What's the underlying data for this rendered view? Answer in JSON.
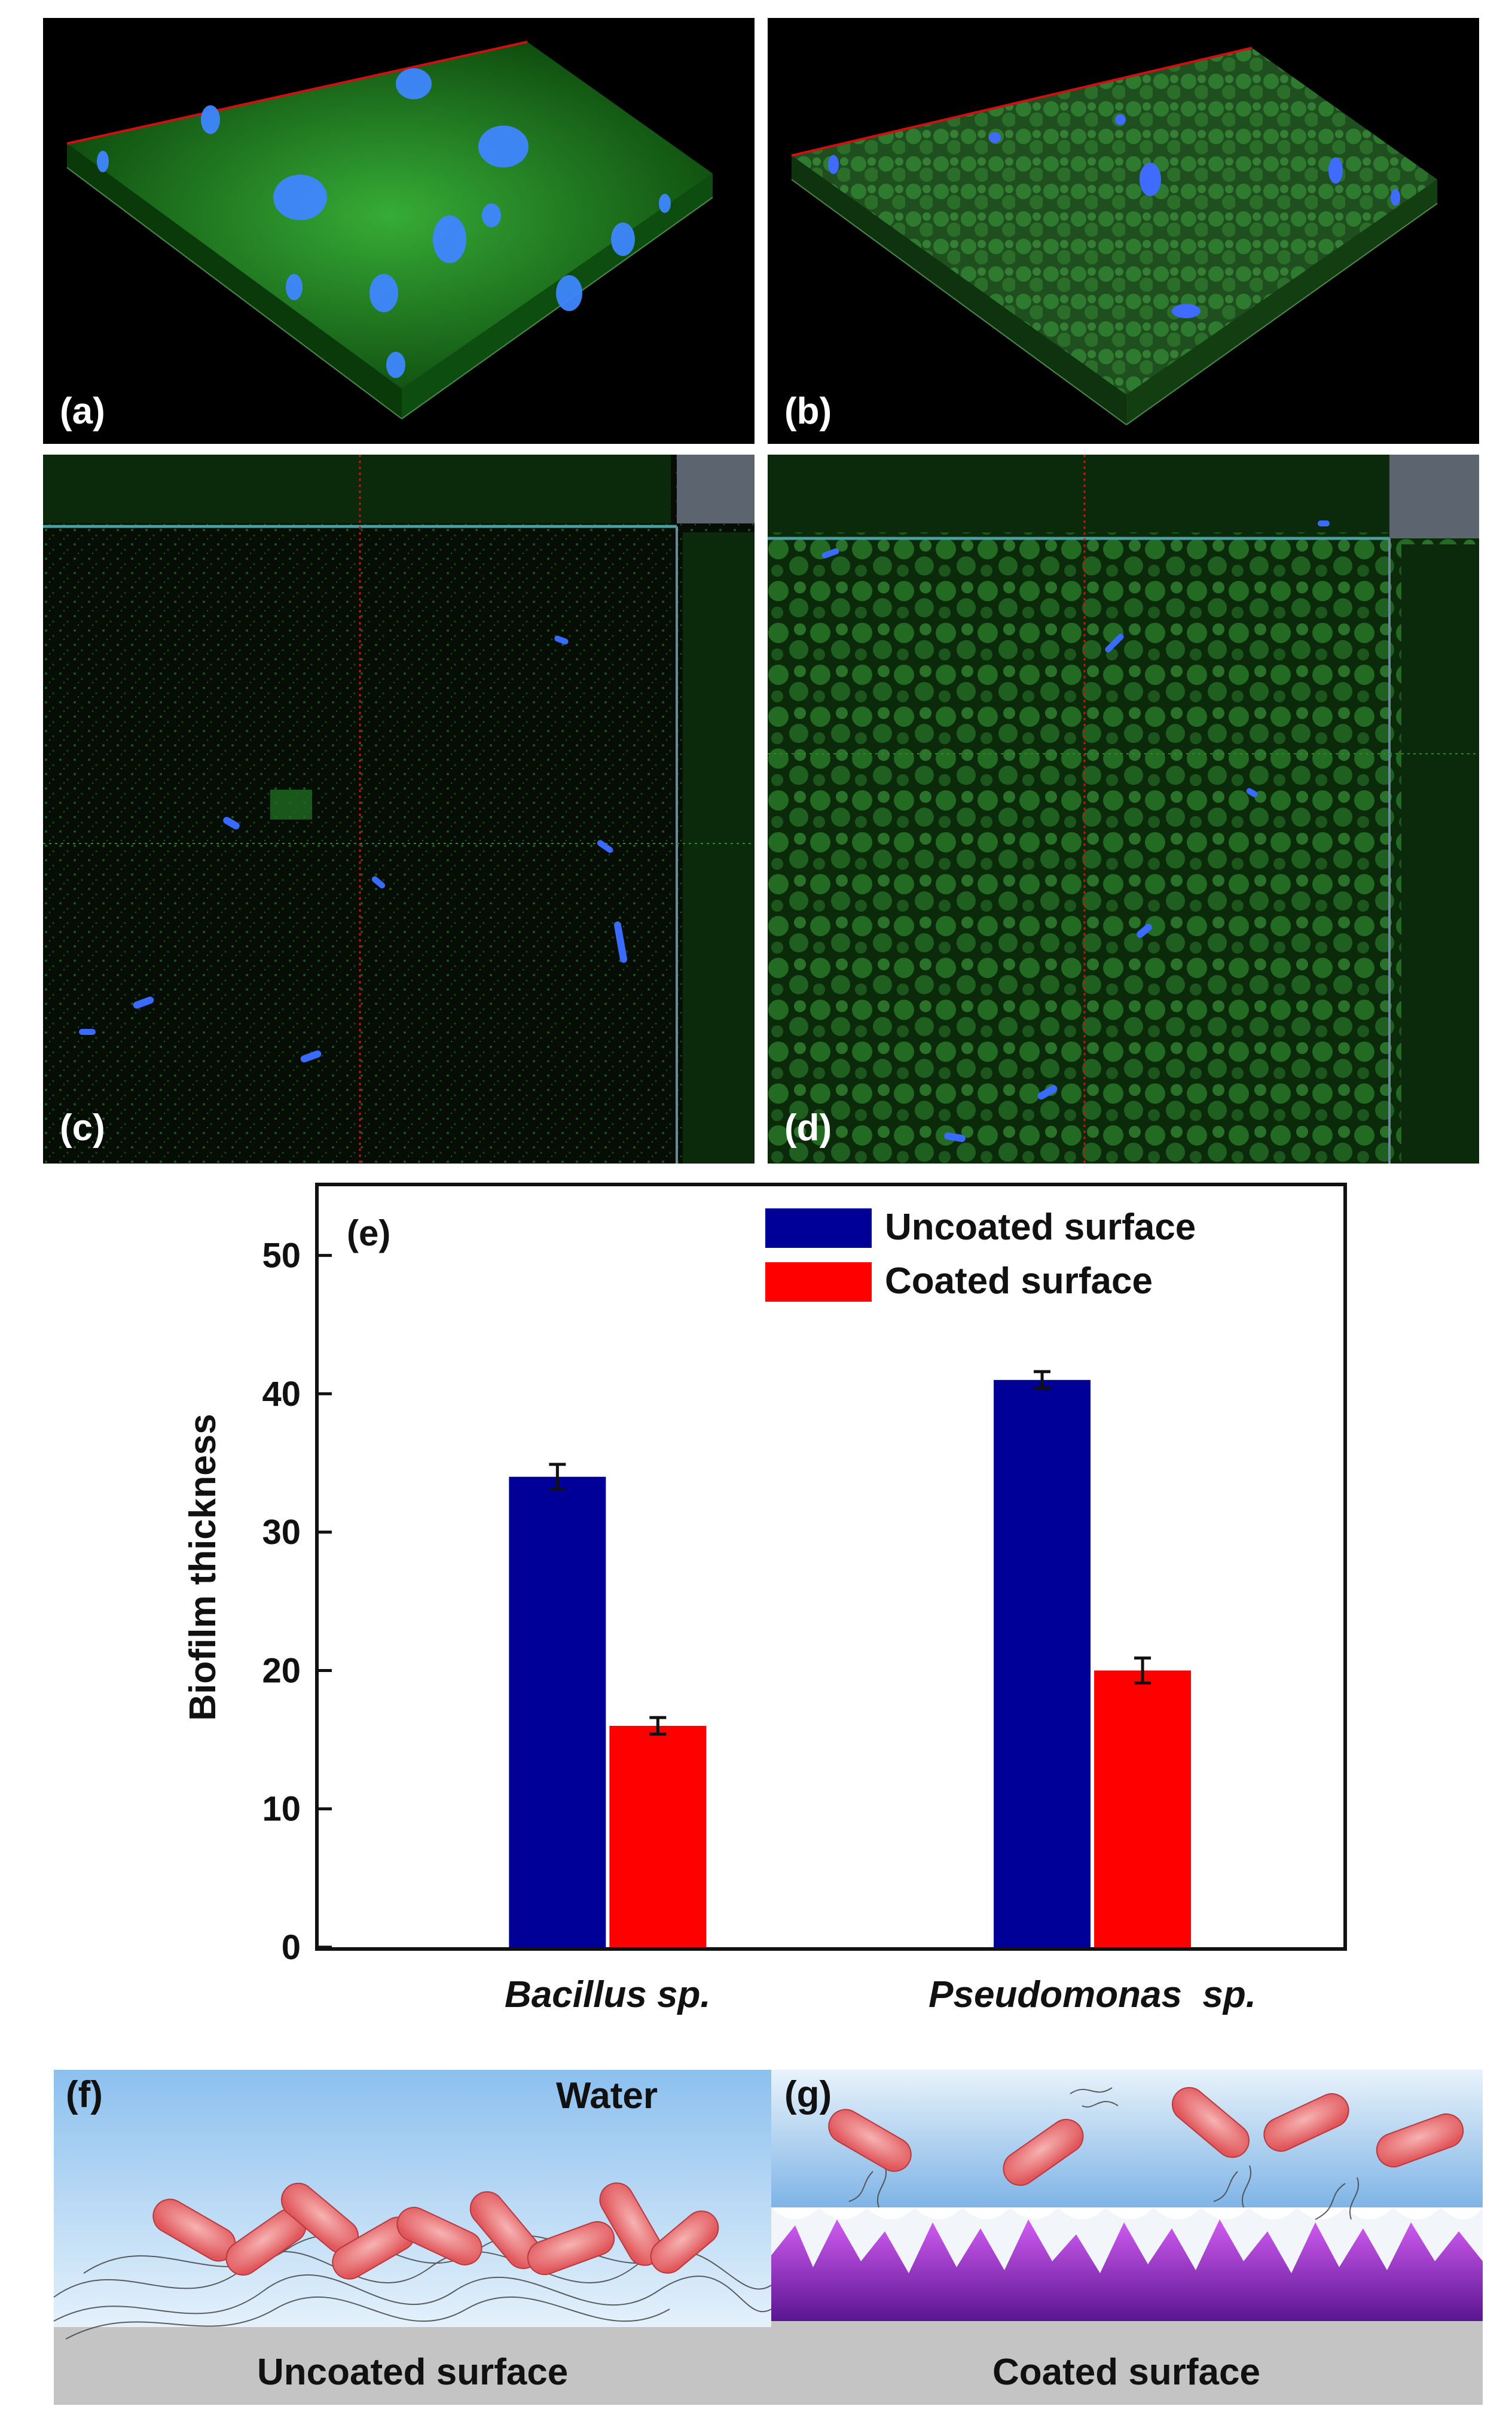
{
  "panels": {
    "a": {
      "label": "(a)"
    },
    "b": {
      "label": "(b)"
    },
    "c": {
      "label": "(c)"
    },
    "d": {
      "label": "(d)"
    },
    "e": {
      "label": "(e)"
    },
    "f": {
      "label": "(f)",
      "medium": "Water",
      "surface": "Uncoated surface"
    },
    "g": {
      "label": "(g)",
      "surface": "Coated surface"
    }
  },
  "colors": {
    "uncoated": "#000099",
    "coated": "#ff0000",
    "biofilm_green": "#1c8a1c",
    "bacteria_blue": "#2f6bff",
    "water": "#a9cdf0",
    "coating_purple": "#8a22c8",
    "surface_gray": "#bfbfbf"
  },
  "chart_data": {
    "type": "bar",
    "ylabel": "Biofilm thickness",
    "xlabel": "",
    "ylim": [
      0,
      55
    ],
    "yticks": [
      0,
      10,
      20,
      30,
      40,
      50
    ],
    "categories": [
      "Bacillus sp.",
      "Pseudomonas  sp."
    ],
    "series": [
      {
        "name": "Uncoated surface",
        "color": "#000099",
        "values": [
          34,
          41
        ],
        "errors": [
          0.9,
          0.6
        ]
      },
      {
        "name": "Coated surface",
        "color": "#ff0000",
        "values": [
          16,
          20
        ],
        "errors": [
          0.6,
          0.9
        ]
      }
    ],
    "legend_position": "top-right",
    "grid": false
  }
}
